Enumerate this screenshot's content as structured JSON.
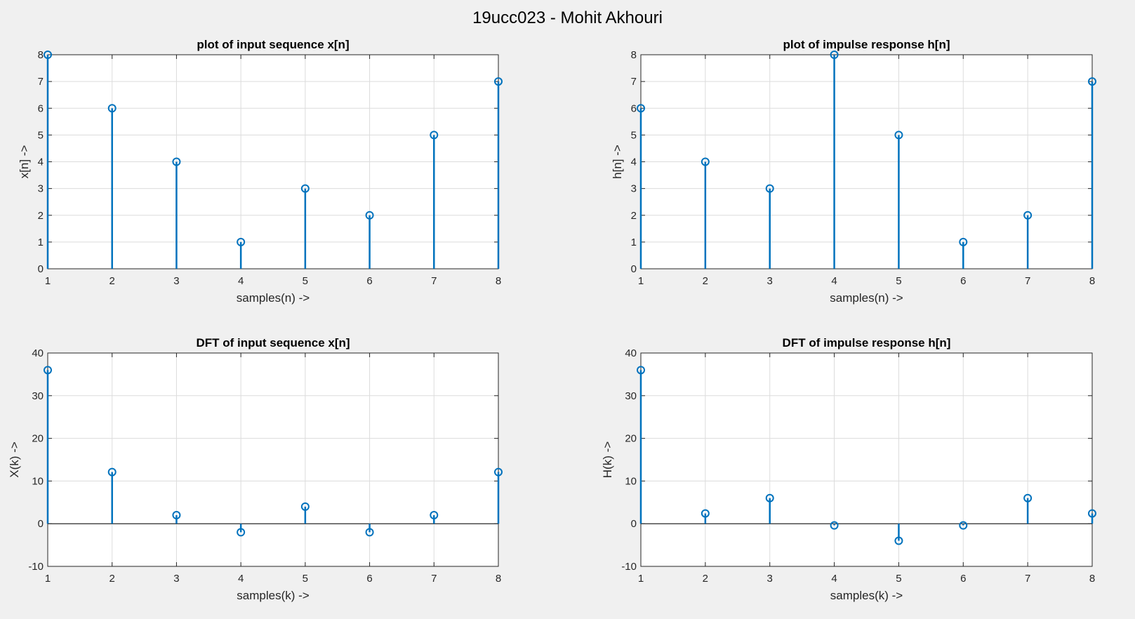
{
  "figure": {
    "title": "19ucc023 - Mohit Akhouri"
  },
  "colors": {
    "stem": "#0072bd",
    "grid": "#dcdcdc",
    "axis": "#262626",
    "background": "#ffffff"
  },
  "chart_data": [
    {
      "type": "stem",
      "title": "plot of input sequence x[n]",
      "xlabel": "samples(n) ->",
      "ylabel": "x[n] ->",
      "x": [
        1,
        2,
        3,
        4,
        5,
        6,
        7,
        8
      ],
      "values": [
        8,
        6,
        4,
        1,
        3,
        2,
        5,
        7
      ],
      "xlim": [
        1,
        8
      ],
      "ylim": [
        0,
        8
      ],
      "xticks": [
        1,
        2,
        3,
        4,
        5,
        6,
        7,
        8
      ],
      "yticks": [
        0,
        1,
        2,
        3,
        4,
        5,
        6,
        7,
        8
      ],
      "grid": true
    },
    {
      "type": "stem",
      "title": "plot of impulse response h[n]",
      "xlabel": "samples(n) ->",
      "ylabel": "h[n] ->",
      "x": [
        1,
        2,
        3,
        4,
        5,
        6,
        7,
        8
      ],
      "values": [
        6,
        4,
        3,
        8,
        5,
        1,
        2,
        7
      ],
      "xlim": [
        1,
        8
      ],
      "ylim": [
        0,
        8
      ],
      "xticks": [
        1,
        2,
        3,
        4,
        5,
        6,
        7,
        8
      ],
      "yticks": [
        0,
        1,
        2,
        3,
        4,
        5,
        6,
        7,
        8
      ],
      "grid": true
    },
    {
      "type": "stem",
      "title": "DFT of input sequence x[n]",
      "xlabel": "samples(k) ->",
      "ylabel": "X(k) ->",
      "x": [
        1,
        2,
        3,
        4,
        5,
        6,
        7,
        8
      ],
      "values": [
        36,
        12.1,
        2,
        -2,
        4,
        -2,
        2,
        12.1
      ],
      "xlim": [
        1,
        8
      ],
      "ylim": [
        -10,
        40
      ],
      "xticks": [
        1,
        2,
        3,
        4,
        5,
        6,
        7,
        8
      ],
      "yticks": [
        -10,
        0,
        10,
        20,
        30,
        40
      ],
      "grid": true
    },
    {
      "type": "stem",
      "title": "DFT of impulse response h[n]",
      "xlabel": "samples(k) ->",
      "ylabel": "H(k) ->",
      "x": [
        1,
        2,
        3,
        4,
        5,
        6,
        7,
        8
      ],
      "values": [
        36,
        2.4,
        6,
        -0.4,
        -4,
        -0.4,
        6,
        2.4
      ],
      "xlim": [
        1,
        8
      ],
      "ylim": [
        -10,
        40
      ],
      "xticks": [
        1,
        2,
        3,
        4,
        5,
        6,
        7,
        8
      ],
      "yticks": [
        -10,
        0,
        10,
        20,
        30,
        40
      ],
      "grid": true
    }
  ]
}
